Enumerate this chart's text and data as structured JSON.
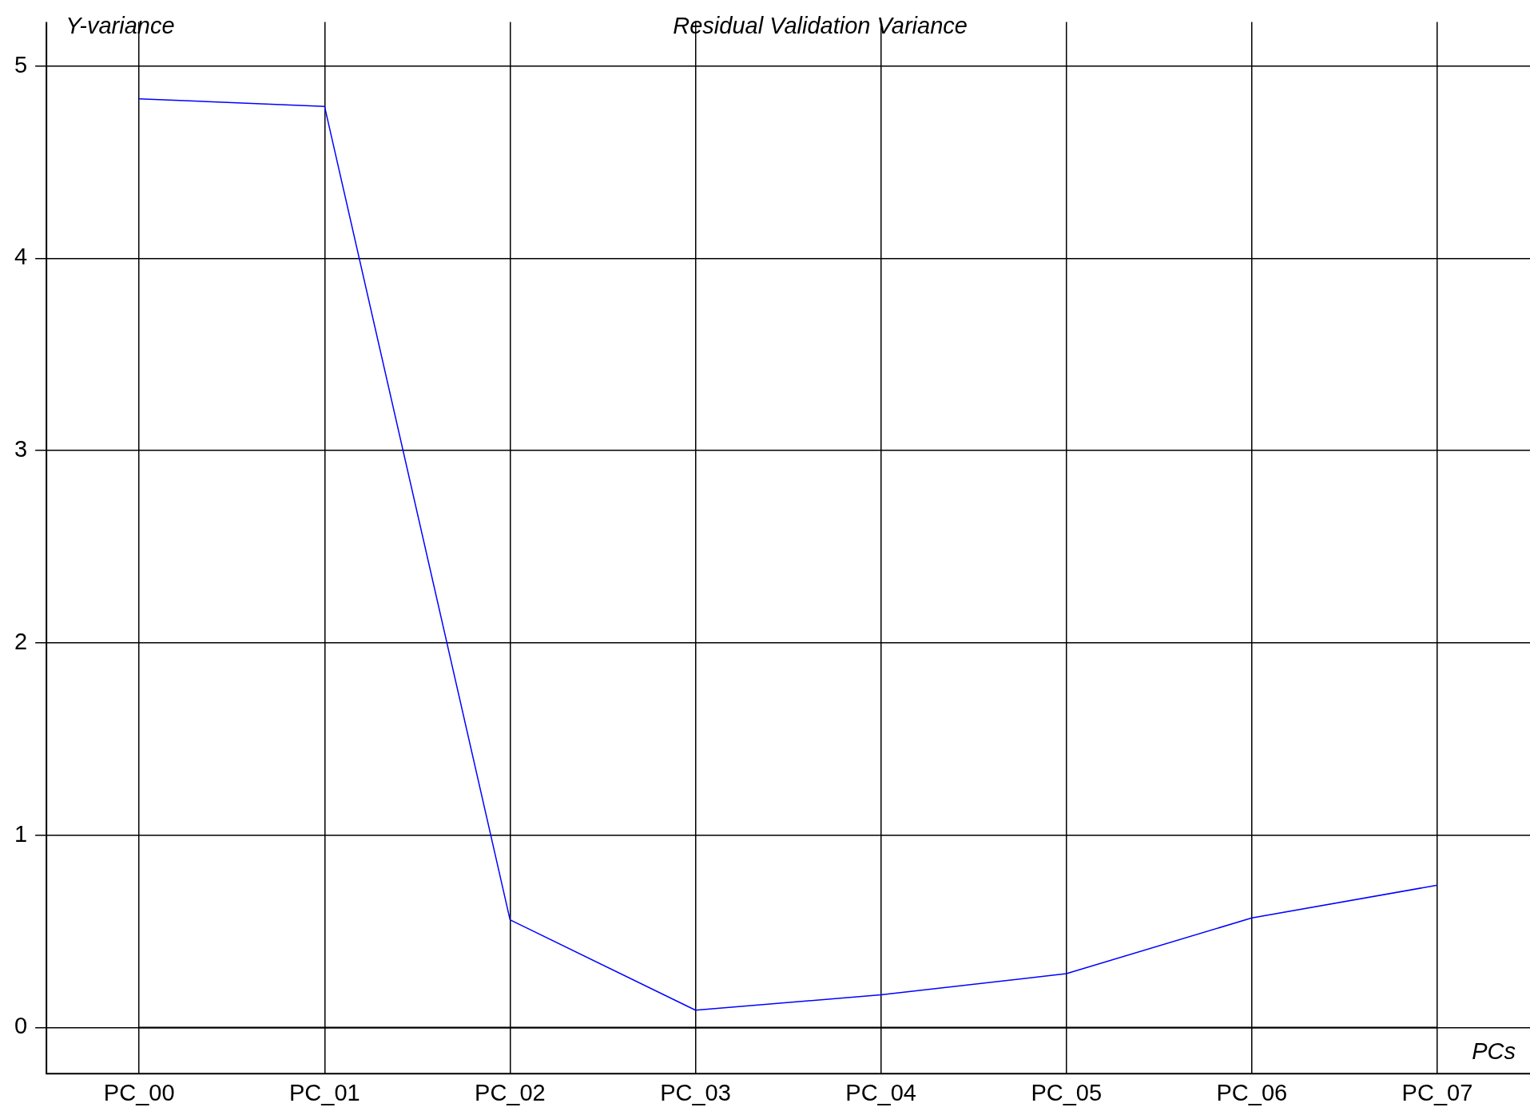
{
  "chart_data": {
    "type": "line",
    "title": "Residual Validation Variance",
    "xlabel": "PCs",
    "ylabel": "Y-variance",
    "categories": [
      "PC_00",
      "PC_01",
      "PC_02",
      "PC_03",
      "PC_04",
      "PC_05",
      "PC_06",
      "PC_07"
    ],
    "series": [
      {
        "color": "#0000ff",
        "values": [
          4.83,
          4.79,
          0.56,
          0.09,
          0.17,
          0.28,
          0.57,
          0.74
        ]
      }
    ],
    "ylim": [
      -0.24,
      5.23
    ],
    "yticks": [
      0,
      1,
      2,
      3,
      4,
      5
    ],
    "grid": true,
    "legend": false,
    "marker": "none",
    "line_style": "solid",
    "ref_lines": [
      {
        "axis": "y",
        "value": 0,
        "color": "#000000"
      }
    ]
  }
}
